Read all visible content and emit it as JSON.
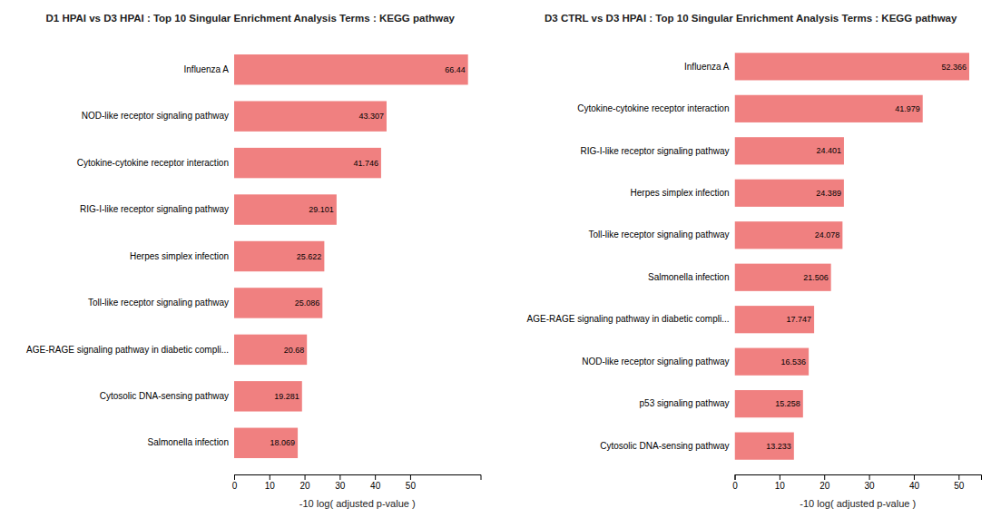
{
  "chart_data": [
    {
      "type": "bar",
      "orientation": "horizontal",
      "title": "D1 HPAI vs D3 HPAI : Top 10 Singular Enrichment Analysis Terms : KEGG pathway",
      "categories": [
        "Salmonella infection",
        "Cytosolic DNA-sensing pathway",
        "AGE-RAGE signaling pathway in diabetic compli...",
        "Toll-like receptor signaling pathway",
        "Herpes simplex infection",
        "RIG-I-like receptor signaling pathway",
        "Cytokine-cytokine receptor interaction",
        "NOD-like receptor signaling pathway",
        "Influenza A"
      ],
      "values": [
        18.069,
        19.281,
        20.68,
        25.086,
        25.622,
        29.101,
        41.746,
        43.307,
        66.44
      ],
      "xlabel": "-10 log( adjusted p-value )",
      "xlim": [
        0,
        70
      ],
      "xticks": [
        0,
        10,
        20,
        30,
        40,
        50
      ],
      "color": "#F08080",
      "data_labels": true,
      "grid": false
    },
    {
      "type": "bar",
      "orientation": "horizontal",
      "title": "D3 CTRL vs D3 HPAI : Top 10 Singular Enrichment Analysis Terms : KEGG pathway",
      "categories": [
        "Cytosolic DNA-sensing pathway",
        "p53 signaling pathway",
        "NOD-like receptor signaling pathway",
        "AGE-RAGE signaling pathway in diabetic compli...",
        "Salmonella infection",
        "Toll-like receptor signaling pathway",
        "Herpes simplex infection",
        "RIG-I-like receptor signaling pathway",
        "Cytokine-cytokine receptor interaction",
        "Influenza A"
      ],
      "values": [
        13.233,
        15.258,
        16.536,
        17.747,
        21.506,
        24.078,
        24.389,
        24.401,
        41.979,
        52.366
      ],
      "xlabel": "-10 log( adjusted p-value )",
      "xlim": [
        0,
        55
      ],
      "xticks": [
        0,
        10,
        20,
        30,
        40,
        50
      ],
      "color": "#F08080",
      "data_labels": true,
      "grid": false
    }
  ]
}
